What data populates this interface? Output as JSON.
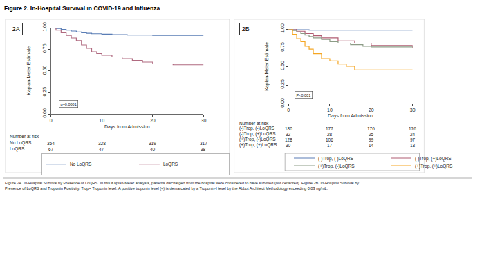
{
  "title": "Figure 2. In-Hospital Survival in COVID-19 and Influenza",
  "caption": [
    "Figure 2A. In-Hospital Survival by Presence of LoQRS. In this Kaplan-Meier analysis, patients discharged from the hospital were considered to have survived (not censored). Figure 2B. In-Hospital Survival by",
    "Presence of LoQRS and Troponin Positivity. Trop= Troponin level. A positive troponin level (+) is demarcated by a Troponin-I level by the Abbot Architect Methodology exceeding 0.03 ng/mL."
  ],
  "chart_data": [
    {
      "type": "line",
      "line_style": "step",
      "panel_label": "2A",
      "annotation": "p=0.0001",
      "xlabel": "Days from Admission",
      "ylabel": "Kaplan-Meier Estimate",
      "xlim": [
        0,
        30
      ],
      "xticks": [
        0,
        10,
        20,
        30
      ],
      "ylim": [
        0,
        1
      ],
      "yticks": [
        {
          "value": 0,
          "label": "0.00"
        },
        {
          "value": 0.25,
          "label": "0.25"
        },
        {
          "value": 0.5,
          "label": "0.50"
        },
        {
          "value": 0.75,
          "label": "0.75"
        },
        {
          "value": 1,
          "label": "1.00"
        }
      ],
      "grid": false,
      "legend": "bottom",
      "series": [
        {
          "name": "No LoQRS",
          "color": "#5a7db5",
          "x": [
            0,
            1,
            2,
            3,
            4,
            5,
            6,
            7,
            8,
            10,
            12,
            15,
            20,
            25,
            30
          ],
          "values": [
            1,
            0.99,
            0.98,
            0.97,
            0.96,
            0.95,
            0.94,
            0.935,
            0.93,
            0.925,
            0.92,
            0.915,
            0.91,
            0.91,
            0.91
          ]
        },
        {
          "name": "LoQRS",
          "color": "#b06a80",
          "x": [
            0,
            1,
            2,
            3,
            4,
            5,
            6,
            7,
            8,
            9,
            10,
            12,
            14,
            16,
            18,
            20,
            24,
            30
          ],
          "values": [
            1,
            0.97,
            0.94,
            0.91,
            0.88,
            0.85,
            0.8,
            0.76,
            0.72,
            0.7,
            0.68,
            0.66,
            0.64,
            0.62,
            0.6,
            0.58,
            0.57,
            0.57
          ]
        }
      ],
      "risk_table": {
        "title": "Number at risk",
        "times": [
          0,
          10,
          20,
          30
        ],
        "rows": [
          {
            "name": "No LoQRS",
            "values": [
              354,
              328,
              319,
              317
            ]
          },
          {
            "name": "LoQRS",
            "values": [
              67,
              47,
              40,
              38
            ]
          }
        ]
      }
    },
    {
      "type": "line",
      "line_style": "step",
      "panel_label": "2B",
      "annotation": "P<0.001",
      "xlabel": "Days from Admission",
      "ylabel": "Kaplan-Meier Estimate",
      "xlim": [
        0,
        30
      ],
      "xticks": [
        0,
        10,
        20,
        30
      ],
      "ylim": [
        0,
        1
      ],
      "yticks": [
        {
          "value": 0,
          "label": "0.00"
        },
        {
          "value": 0.25,
          "label": "0.25"
        },
        {
          "value": 0.5,
          "label": "0.50"
        },
        {
          "value": 0.75,
          "label": "0.75"
        },
        {
          "value": 1,
          "label": "1.00"
        }
      ],
      "grid": false,
      "legend": "bottom",
      "series": [
        {
          "name": "(-)Trop, (-)LoQRS",
          "color": "#5a7db5",
          "x": [
            0,
            2,
            5,
            30
          ],
          "values": [
            1,
            0.99,
            0.985,
            0.985
          ]
        },
        {
          "name": "(-)Trop, (+)LoQRS",
          "color": "#b05c72",
          "x": [
            0,
            2,
            4,
            6,
            8,
            12,
            16,
            20,
            30
          ],
          "values": [
            1,
            0.97,
            0.94,
            0.91,
            0.88,
            0.84,
            0.81,
            0.78,
            0.75
          ]
        },
        {
          "name": "(+)Trop, (-)LoQRS",
          "color": "#8c9c86",
          "x": [
            0,
            1,
            2,
            3,
            4,
            5,
            6,
            8,
            10,
            12,
            15,
            18,
            20,
            25,
            30
          ],
          "values": [
            1,
            0.98,
            0.96,
            0.94,
            0.92,
            0.9,
            0.88,
            0.86,
            0.83,
            0.81,
            0.79,
            0.77,
            0.76,
            0.76,
            0.76
          ]
        },
        {
          "name": "(+)Trop, (+)LoQRS",
          "color": "#f5a623",
          "x": [
            0,
            1,
            2,
            3,
            4,
            5,
            6,
            8,
            10,
            12,
            14,
            16,
            30
          ],
          "values": [
            1,
            0.93,
            0.87,
            0.83,
            0.77,
            0.73,
            0.67,
            0.6,
            0.57,
            0.53,
            0.5,
            0.45,
            0.45
          ]
        }
      ],
      "risk_table": {
        "title": "Number at risk",
        "times": [
          0,
          10,
          20,
          30
        ],
        "rows": [
          {
            "name": "(-)Trop, (-)LoQRS",
            "values": [
              180,
              177,
              176,
              176
            ]
          },
          {
            "name": "(-)Trop, (+)LoQRS",
            "values": [
              32,
              28,
              25,
              24
            ]
          },
          {
            "name": "(+)Trop, (-)LoQRS",
            "values": [
              128,
              106,
              99,
              97
            ]
          },
          {
            "name": "(+)Trop, (+)LoQRS",
            "values": [
              30,
              17,
              14,
              13
            ]
          }
        ]
      }
    }
  ]
}
